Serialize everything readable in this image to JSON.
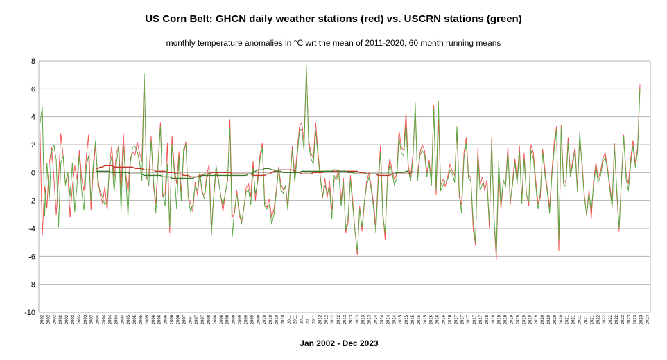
{
  "chart_data": {
    "type": "line",
    "title": "US Corn Belt: GHCN daily weather stations (red) vs. USCRN stations (green)",
    "subtitle": "monthly temperature anomalies in °C wrt the mean of 2011-2020, 60 month running means",
    "xlabel": "Jan 2002 - Dec 2023",
    "ylabel": "",
    "ylim": [
      -10,
      8
    ],
    "yticks": [
      -10,
      -8,
      -6,
      -4,
      -2,
      0,
      2,
      4,
      6,
      8
    ],
    "x_start": "2002-01",
    "x_end": "2023-12",
    "grid": true,
    "colors": {
      "ghcn": "#f25555",
      "uscrn": "#5ea845",
      "ghcn_mean": "#c0392b",
      "uscrn_mean": "#3c7a2a"
    },
    "series": [
      {
        "key": "ghcn",
        "values": [
          3.0,
          -4.5,
          -1.0,
          -2.5,
          0.6,
          1.8,
          -0.3,
          -3.0,
          -0.5,
          2.8,
          1.2,
          -0.8,
          0.0,
          -3.2,
          -1.0,
          0.5,
          -0.5,
          1.6,
          -0.4,
          -1.3,
          1.1,
          2.7,
          -2.7,
          0.2,
          1.9,
          -0.4,
          -1.6,
          -2.2,
          -1.0,
          -2.7,
          0.6,
          1.9,
          -0.5,
          1.4,
          1.9,
          -1.3,
          2.8,
          0.0,
          -1.4,
          1.0,
          1.5,
          1.2,
          2.2,
          1.4,
          0.8,
          7.0,
          -0.4,
          -0.2,
          2.6,
          -1.0,
          -2.2,
          0.8,
          3.6,
          -1.7,
          -1.6,
          2.1,
          -4.3,
          2.6,
          0.4,
          -0.8,
          1.5,
          -1.5,
          1.3,
          2.2,
          -1.8,
          -2.2,
          -2.8,
          -0.7,
          -1.6,
          0.0,
          -1.5,
          -1.6,
          -0.2,
          0.6,
          -3.9,
          -1.8,
          0.1,
          -0.5,
          -1.6,
          -2.8,
          -1.5,
          -0.6,
          3.8,
          -3.2,
          -2.9,
          -1.3,
          -3.1,
          -3.5,
          -2.6,
          -1.1,
          -0.8,
          -1.7,
          0.8,
          -2.0,
          -0.3,
          1.3,
          2.1,
          -2.1,
          -2.5,
          -1.9,
          -3.2,
          -2.6,
          -1.3,
          0.4,
          -0.8,
          -1.2,
          -1.0,
          -2.3,
          0.0,
          1.9,
          -0.4,
          1.5,
          3.3,
          3.6,
          2.2,
          7.4,
          2.3,
          1.4,
          1.0,
          3.6,
          1.5,
          -0.2,
          -1.8,
          -0.4,
          -1.8,
          -0.6,
          -2.7,
          -0.5,
          -0.3,
          0.2,
          -2.0,
          -0.4,
          -4.3,
          -3.6,
          -0.2,
          -2.0,
          -4.2,
          -5.9,
          -2.4,
          -4.2,
          -2.3,
          -0.7,
          0.0,
          -1.0,
          -2.2,
          -3.8,
          -0.4,
          1.9,
          -2.8,
          -4.8,
          -0.3,
          1.0,
          0.2,
          -0.5,
          -0.1,
          3.0,
          1.8,
          1.6,
          4.3,
          0.5,
          -0.3,
          1.3,
          4.6,
          -0.3,
          1.4,
          2.0,
          1.6,
          0.0,
          0.9,
          -0.6,
          4.8,
          -1.6,
          3.8,
          -0.9,
          -0.5,
          -1.0,
          -0.3,
          0.6,
          0.1,
          -0.2,
          3.0,
          -1.8,
          -2.3,
          1.4,
          2.5,
          -0.1,
          -0.4,
          -4.0,
          -5.2,
          1.7,
          -0.9,
          -0.3,
          -1.3,
          -0.5,
          -4.0,
          2.5,
          -3.5,
          -6.2,
          0.1,
          -2.6,
          -0.7,
          -0.8,
          1.9,
          -2.3,
          -0.6,
          1.0,
          -0.5,
          1.9,
          -2.0,
          1.4,
          -1.5,
          -2.4,
          2.0,
          1.4,
          -0.5,
          -2.2,
          -1.8,
          1.7,
          0.2,
          -1.2,
          -2.5,
          0.1,
          2.2,
          3.3,
          -5.6,
          3.4,
          -0.5,
          -0.7,
          2.5,
          -0.1,
          0.9,
          1.8,
          -1.1,
          2.4,
          0.8,
          -1.6,
          -3.1,
          -1.2,
          -3.3,
          -0.6,
          0.7,
          -0.4,
          0.1,
          1.0,
          1.4,
          0.4,
          -0.9,
          -2.2,
          2.1,
          -1.5,
          -4.2,
          -0.5,
          2.7,
          -0.1,
          -0.8,
          1.0,
          2.3,
          0.7,
          1.8,
          6.3
        ],
        "start_index": 0
      },
      {
        "key": "uscrn",
        "values": [
          3.5,
          4.7,
          -3.1,
          0.7,
          -1.9,
          1.5,
          2.0,
          0.9,
          -3.9,
          0.7,
          1.2,
          -0.9,
          0.0,
          -1.7,
          0.7,
          -2.8,
          -0.9,
          1.2,
          -1.3,
          -2.7,
          0.5,
          1.2,
          -2.0,
          0.6,
          2.3,
          -0.9,
          -1.3,
          -1.8,
          -2.3,
          -2.1,
          0.3,
          1.2,
          -1.4,
          0.6,
          2.0,
          -2.8,
          1.9,
          -0.2,
          -3.1,
          0.7,
          1.8,
          1.9,
          1.5,
          0.8,
          -0.6,
          7.1,
          -0.2,
          -0.9,
          2.3,
          -0.5,
          -2.9,
          0.6,
          3.3,
          -1.4,
          -2.4,
          0.6,
          -3.9,
          2.0,
          0.1,
          -2.6,
          1.1,
          -2.0,
          1.7,
          2.0,
          -1.7,
          -2.8,
          -2.3,
          -0.9,
          -1.3,
          0.0,
          -1.3,
          -1.9,
          -0.4,
          0.1,
          -4.5,
          -1.7,
          0.5,
          -0.4,
          -1.7,
          -2.3,
          -1.5,
          -0.4,
          3.2,
          -4.6,
          -2.6,
          -1.6,
          -2.7,
          -3.7,
          -2.5,
          -1.4,
          -1.2,
          -2.3,
          0.3,
          -1.5,
          -0.7,
          1.0,
          1.8,
          -2.4,
          -2.6,
          -2.3,
          -3.7,
          -3.0,
          -1.5,
          0.3,
          -1.2,
          -1.5,
          -0.9,
          -2.7,
          -0.2,
          1.6,
          -0.7,
          1.1,
          3.0,
          3.1,
          1.6,
          7.6,
          2.0,
          1.0,
          0.6,
          3.0,
          1.2,
          -0.4,
          -1.7,
          -0.9,
          -1.5,
          -1.1,
          -3.3,
          -0.2,
          -0.5,
          0.0,
          -2.4,
          -0.7,
          -4.1,
          -3.2,
          -0.5,
          -2.4,
          -4.2,
          -5.6,
          -2.6,
          -3.9,
          -2.1,
          -1.0,
          -0.3,
          -1.2,
          -2.6,
          -4.3,
          -0.8,
          1.4,
          -3.1,
          -4.3,
          -0.6,
          0.6,
          0.0,
          -0.9,
          -0.4,
          2.5,
          1.4,
          1.2,
          3.5,
          0.2,
          -0.6,
          1.0,
          5.0,
          -0.6,
          1.2,
          1.6,
          1.3,
          -0.3,
          0.7,
          -0.9,
          4.6,
          -1.2,
          5.1,
          -1.3,
          -0.9,
          -0.6,
          -0.5,
          0.2,
          -0.1,
          -0.7,
          3.3,
          -1.4,
          -2.9,
          1.0,
          2.1,
          -0.4,
          -0.6,
          -3.4,
          -5.0,
          1.2,
          -1.3,
          -0.8,
          -1.0,
          -0.9,
          -3.5,
          2.1,
          -3.2,
          -5.8,
          0.8,
          -2.3,
          -0.5,
          -1.0,
          1.5,
          -2.0,
          -0.9,
          0.7,
          -0.8,
          1.5,
          -2.2,
          1.0,
          -1.6,
          -2.1,
          1.6,
          1.0,
          -0.9,
          -2.6,
          -1.4,
          1.4,
          -0.2,
          -1.4,
          -2.9,
          -0.2,
          1.7,
          3.1,
          -4.8,
          3.2,
          -0.8,
          -1.0,
          2.1,
          -0.3,
          0.6,
          1.5,
          -1.4,
          2.9,
          0.5,
          -1.8,
          -3.0,
          -1.5,
          -2.7,
          -0.9,
          0.4,
          -0.7,
          -0.2,
          0.8,
          1.1,
          0.2,
          -1.2,
          -2.5,
          1.8,
          -1.2,
          -4.0,
          -0.8,
          2.6,
          -0.4,
          -1.3,
          0.6,
          1.9,
          0.4,
          1.5,
          6.0
        ],
        "start_index": 0
      },
      {
        "key": "ghcn_mean",
        "values": [
          0.3,
          0.3,
          0.4,
          0.4,
          0.5,
          0.5,
          0.5,
          0.5,
          0.4,
          0.4,
          0.4,
          0.4,
          0.4,
          0.4,
          0.4,
          0.4,
          0.4,
          0.3,
          0.3,
          0.3,
          0.3,
          0.2,
          0.2,
          0.2,
          0.2,
          0.2,
          0.1,
          0.1,
          0.1,
          0.1,
          0.1,
          0.0,
          0.0,
          0.0,
          0.0,
          -0.1,
          -0.1,
          -0.1,
          -0.2,
          -0.2,
          -0.2,
          -0.3,
          -0.3,
          -0.3,
          -0.3,
          -0.2,
          -0.2,
          -0.1,
          -0.1,
          -0.1,
          0.0,
          0.0,
          0.0,
          0.0,
          0.0,
          0.0,
          0.0,
          0.0,
          0.0,
          -0.1,
          -0.1,
          -0.1,
          -0.1,
          -0.1,
          -0.1,
          -0.1,
          -0.1,
          -0.1,
          -0.2,
          -0.2,
          -0.2,
          -0.2,
          -0.2,
          -0.2,
          -0.1,
          -0.1,
          0.0,
          0.1,
          0.1,
          0.2,
          0.2,
          0.2,
          0.2,
          0.2,
          0.2,
          0.2,
          0.1,
          0.0,
          0.0,
          -0.1,
          -0.1,
          -0.1,
          -0.1,
          -0.1,
          0.0,
          0.0,
          0.0,
          0.0,
          0.0,
          0.1,
          0.1,
          0.1,
          0.1,
          0.1,
          0.1,
          0.1,
          0.1,
          0.1,
          0.1,
          0.1,
          0.1,
          0.1,
          0.1,
          0.1,
          0.0,
          0.0,
          0.0,
          -0.1,
          -0.1,
          -0.1,
          -0.1,
          -0.1,
          -0.2,
          -0.2,
          -0.2,
          -0.2,
          -0.2,
          -0.2,
          -0.1,
          -0.1,
          -0.1,
          -0.1,
          -0.1,
          -0.1,
          -0.1,
          -0.1,
          0.0,
          0.1
        ],
        "start_index": 24
      },
      {
        "key": "uscrn_mean",
        "values": [
          0.1,
          0.1,
          0.1,
          0.1,
          0.1,
          0.1,
          0.1,
          0.0,
          0.0,
          0.0,
          0.0,
          0.0,
          0.0,
          0.0,
          0.0,
          -0.1,
          -0.1,
          -0.1,
          -0.1,
          -0.1,
          -0.1,
          -0.2,
          -0.2,
          -0.2,
          -0.2,
          -0.2,
          -0.2,
          -0.2,
          -0.2,
          -0.3,
          -0.3,
          -0.3,
          -0.3,
          -0.4,
          -0.4,
          -0.4,
          -0.4,
          -0.4,
          -0.4,
          -0.4,
          -0.4,
          -0.4,
          -0.4,
          -0.3,
          -0.3,
          -0.3,
          -0.2,
          -0.2,
          -0.2,
          -0.2,
          -0.2,
          -0.2,
          -0.2,
          -0.2,
          -0.2,
          -0.2,
          -0.2,
          -0.2,
          -0.2,
          -0.2,
          -0.2,
          -0.2,
          -0.2,
          -0.2,
          -0.2,
          -0.2,
          -0.1,
          -0.1,
          0.0,
          0.1,
          0.2,
          0.2,
          0.2,
          0.3,
          0.3,
          0.3,
          0.2,
          0.2,
          0.1,
          0.1,
          0.1,
          0.0,
          0.0,
          0.0,
          0.0,
          0.0,
          0.0,
          0.0,
          0.0,
          0.1,
          0.1,
          0.1,
          0.1,
          0.1,
          0.1,
          0.1,
          0.1,
          0.1,
          0.1,
          0.1,
          0.1,
          0.1,
          0.1,
          0.2,
          0.2,
          0.1,
          0.1,
          0.1,
          0.1,
          0.0,
          0.0,
          0.0,
          -0.1,
          -0.1,
          -0.1,
          -0.1,
          -0.1,
          -0.1,
          -0.1,
          -0.1,
          -0.1,
          -0.1,
          -0.1,
          -0.1,
          -0.1,
          -0.1,
          -0.1,
          -0.1,
          -0.1,
          -0.1,
          0.0,
          0.0,
          0.0,
          0.0,
          0.1,
          0.1
        ],
        "start_index": 24
      }
    ],
    "x_tick_labels": [
      "2002",
      "2002",
      "2002",
      "2002",
      "2002",
      "2003",
      "2003",
      "2003",
      "2003",
      "2004",
      "2004",
      "2004",
      "2004",
      "2004",
      "2005",
      "2005",
      "2005",
      "2005",
      "2006",
      "2006",
      "2006",
      "2006",
      "2006",
      "2007",
      "2007",
      "2007",
      "2007",
      "2008",
      "2008",
      "2008",
      "2008",
      "2009",
      "2009",
      "2009",
      "2009",
      "2009",
      "2010",
      "2010",
      "2010",
      "2010",
      "2011",
      "2011",
      "2011",
      "2011",
      "2011",
      "2012",
      "2012",
      "2012",
      "2012",
      "2013",
      "2013",
      "2013",
      "2013",
      "2013",
      "2014",
      "2014",
      "2014",
      "2014",
      "2015",
      "2015",
      "2015",
      "2015",
      "2015",
      "2016",
      "2016",
      "2016",
      "2016",
      "2017",
      "2017",
      "2017",
      "2017",
      "2017",
      "2018",
      "2018",
      "2018",
      "2018",
      "2019",
      "2019",
      "2019",
      "2019",
      "2019",
      "2020",
      "2020",
      "2020",
      "2020",
      "2021",
      "2021",
      "2021",
      "2021",
      "2021",
      "2022",
      "2022",
      "2022",
      "2022",
      "2023",
      "2023",
      "2023",
      "2023",
      "2023"
    ]
  }
}
